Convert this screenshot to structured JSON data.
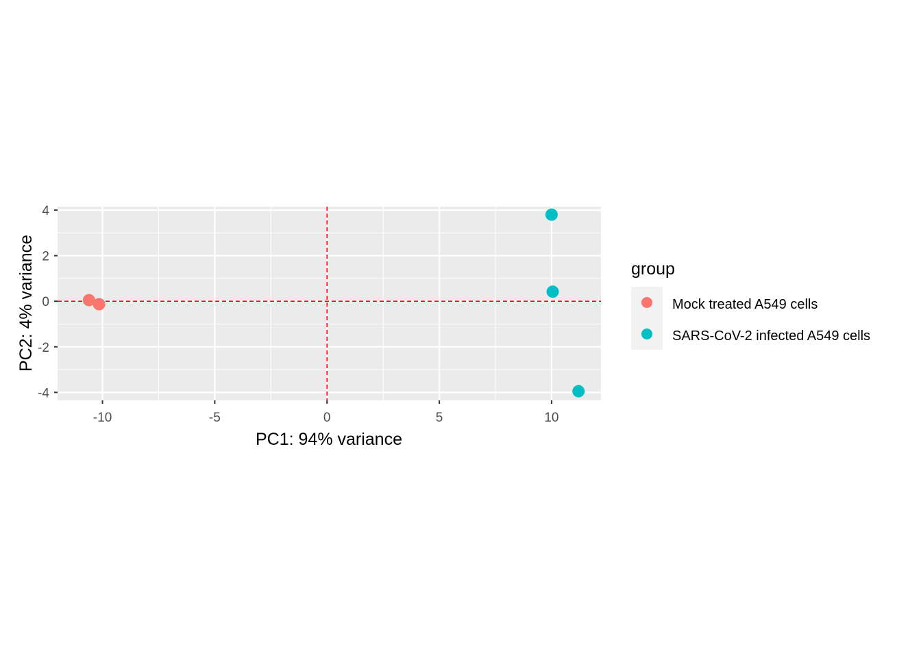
{
  "chart_data": {
    "type": "scatter",
    "xlabel": "PC1: 94% variance",
    "ylabel": "PC2: 4% variance",
    "xlim": [
      -12,
      12.2
    ],
    "ylim": [
      -4.35,
      4.15
    ],
    "x_ticks": [
      -10,
      -5,
      0,
      5,
      10
    ],
    "x_tick_labels": [
      "-10",
      "-5",
      "0",
      "5",
      "10"
    ],
    "y_ticks": [
      -4,
      -2,
      0,
      2,
      4
    ],
    "y_tick_labels": [
      "-4",
      "-2",
      "0",
      "2",
      "4"
    ],
    "grid": true,
    "reference_lines": {
      "x": 0,
      "y": 0,
      "color": "#ff0000",
      "style": "dashed"
    },
    "legend": {
      "title": "group",
      "placement": "right"
    },
    "series": [
      {
        "name": "Mock treated A549 cells",
        "color": "#f8766d",
        "points": [
          {
            "x": -10.6,
            "y": 0.05
          },
          {
            "x": -10.15,
            "y": -0.13
          }
        ]
      },
      {
        "name": "SARS-CoV-2 infected A549 cells",
        "color": "#00bfc4",
        "points": [
          {
            "x": 10.0,
            "y": 3.8
          },
          {
            "x": 10.05,
            "y": 0.42
          },
          {
            "x": 11.2,
            "y": -3.95
          }
        ]
      }
    ]
  }
}
